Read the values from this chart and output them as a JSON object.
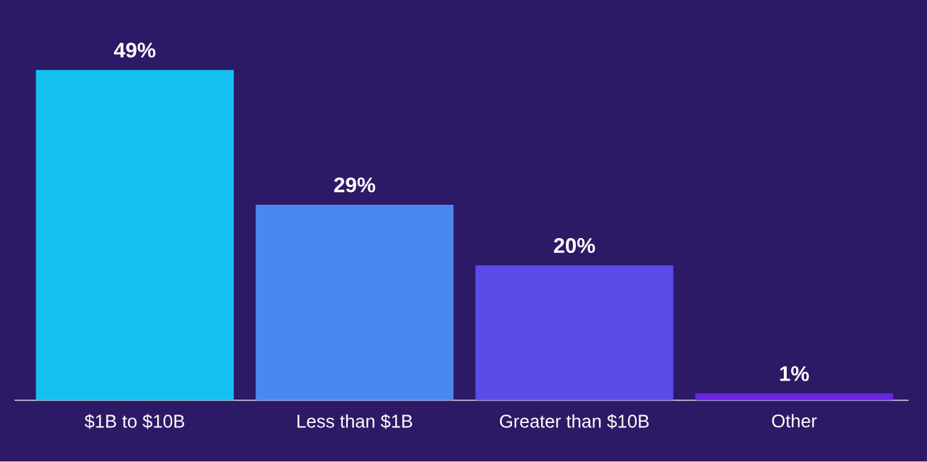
{
  "chart_data": {
    "type": "bar",
    "categories": [
      "$1B to $10B",
      "Less than $1B",
      "Greater than $10B",
      "Other"
    ],
    "values": [
      49,
      29,
      20,
      1
    ],
    "colors": [
      "#14c0f0",
      "#4a88f0",
      "#5a4ce8",
      "#6a26e2"
    ],
    "value_labels": [
      "49%",
      "29%",
      "20%",
      "1%"
    ]
  }
}
